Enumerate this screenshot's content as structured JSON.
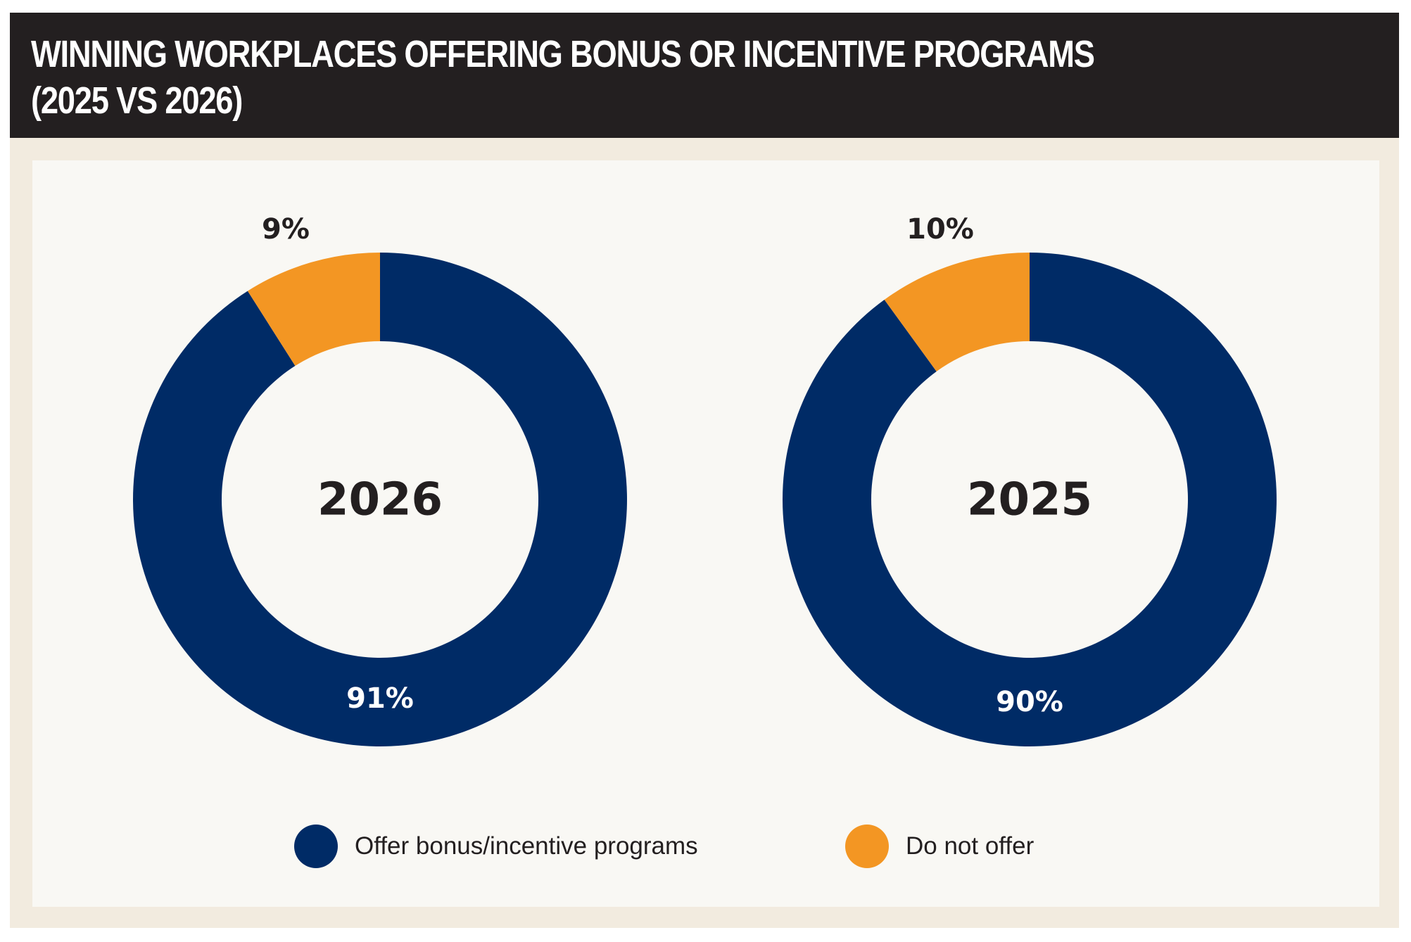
{
  "title": {
    "line1": "WINNING WORKPLACES OFFERING BONUS OR INCENTIVE PROGRAMS",
    "line2": "(2025 VS 2026)"
  },
  "colors": {
    "offer": "#002b66",
    "do_not_offer": "#f39623",
    "title_bg": "#231f20",
    "outer_bg": "#f2ebdf",
    "inner_bg": "#f9f8f4"
  },
  "legend": [
    {
      "label": "Offer bonus/incentive programs",
      "color": "#002b66"
    },
    {
      "label": "Do not offer",
      "color": "#f39623"
    }
  ],
  "chart_data": [
    {
      "type": "pie",
      "center_label": "2026",
      "categories": [
        "Offer bonus/incentive programs",
        "Do not offer"
      ],
      "values": [
        91,
        9
      ],
      "labels": [
        "91%",
        "9%"
      ]
    },
    {
      "type": "pie",
      "center_label": "2025",
      "categories": [
        "Offer bonus/incentive programs",
        "Do not offer"
      ],
      "values": [
        90,
        10
      ],
      "labels": [
        "90%",
        "10%"
      ]
    }
  ]
}
